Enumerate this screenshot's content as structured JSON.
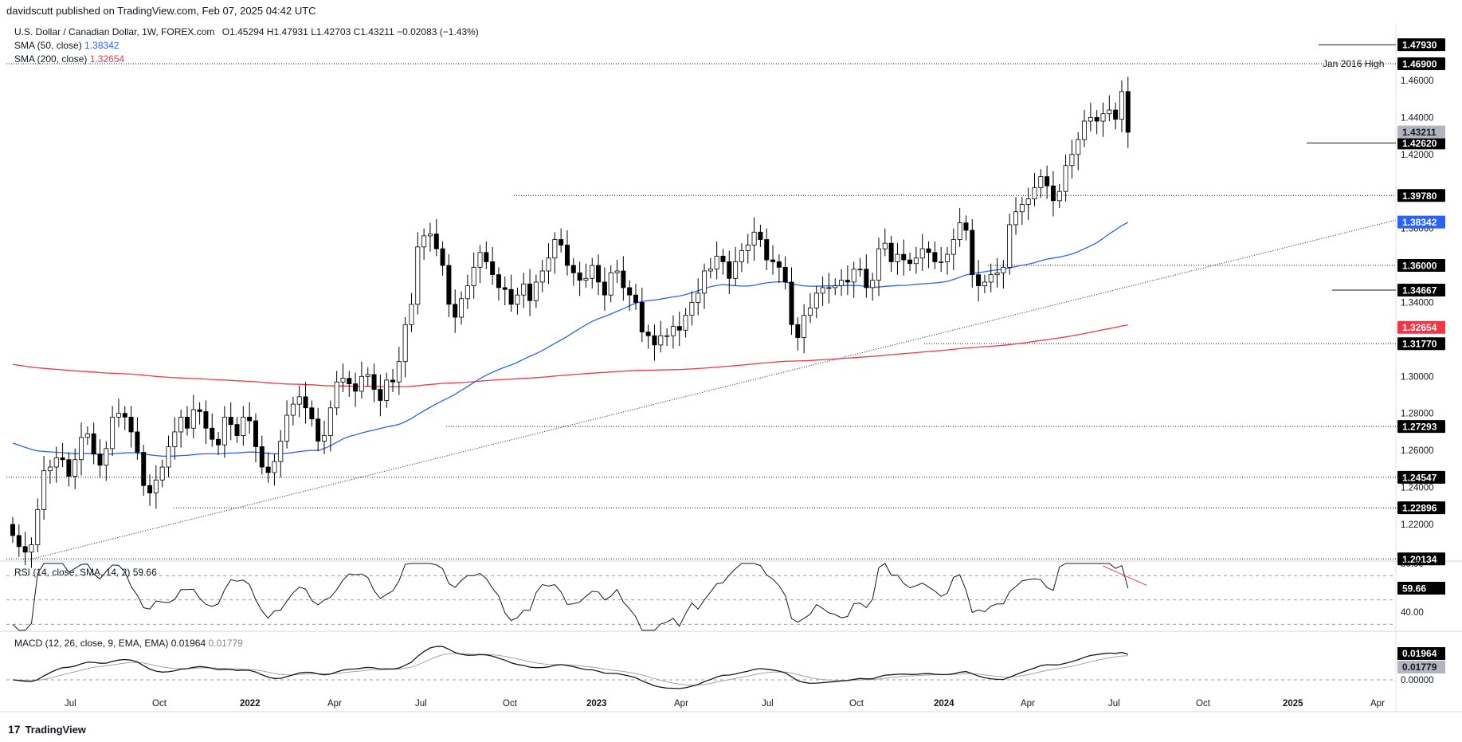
{
  "header": {
    "published": "davidscutt published on TradingView.com, Feb 07, 2025 04:42 UTC"
  },
  "symbol": {
    "name": "U.S. Dollar / Canadian Dollar, 1W, FOREX.com",
    "ohlc": "O1.45294  H1.47931  L1.42703  C1.43211  −0.02083 (−1.43%)"
  },
  "indicators": {
    "sma50_label": "SMA (50, close)",
    "sma50_value": "1.38342",
    "sma200_label": "SMA (200, close)",
    "sma200_value": "1.32654",
    "rsi_label": "RSI (14, close, SMA, 14, 2)",
    "rsi_value": "59.66",
    "macd_label": "MACD (12, 26, close, 9, EMA, EMA)",
    "macd_value": "0.01964",
    "signal_value": "0.01779"
  },
  "footer": {
    "brand": "TradingView"
  },
  "colors": {
    "up": "#ffffff",
    "down": "#000000",
    "sma50": "#2962ff",
    "sma200": "#f23645",
    "badge_dark": "#000000",
    "badge_price": "#b2b5be"
  },
  "chart_data": {
    "type": "candlestick",
    "timeframe": "1W",
    "ylim": [
      1.2,
      1.48
    ],
    "y_ticks": [
      "1.46000",
      "1.44000",
      "1.42000",
      "1.38000",
      "1.34000",
      "1.30000",
      "1.28000",
      "1.26000",
      "1.24000",
      "1.22000"
    ],
    "x_ticks": [
      "Jul",
      "Oct",
      "2022",
      "Apr",
      "Jul",
      "Oct",
      "2023",
      "Apr",
      "Jul",
      "Oct",
      "2024",
      "Apr",
      "Jul",
      "Oct",
      "2025",
      "Apr"
    ],
    "horizontal_levels": [
      "1.47930",
      "1.46900",
      "1.42620",
      "1.39780",
      "1.36000",
      "1.34667",
      "1.31770",
      "1.27293",
      "1.24547",
      "1.22896",
      "1.20134"
    ],
    "annotation": "Jan 2016 High",
    "last_close": "1.43211",
    "sma50_last": "1.38342",
    "sma200_last": "1.32654",
    "closes": [
      1.214,
      1.208,
      1.205,
      1.209,
      1.228,
      1.249,
      1.251,
      1.256,
      1.255,
      1.246,
      1.255,
      1.267,
      1.269,
      1.258,
      1.252,
      1.261,
      1.278,
      1.28,
      1.278,
      1.27,
      1.259,
      1.241,
      1.237,
      1.244,
      1.251,
      1.262,
      1.27,
      1.278,
      1.272,
      1.282,
      1.281,
      1.272,
      1.266,
      1.263,
      1.278,
      1.274,
      1.268,
      1.278,
      1.276,
      1.262,
      1.251,
      1.248,
      1.254,
      1.265,
      1.279,
      1.285,
      1.289,
      1.283,
      1.277,
      1.265,
      1.268,
      1.283,
      1.297,
      1.299,
      1.296,
      1.292,
      1.3,
      1.301,
      1.293,
      1.287,
      1.298,
      1.297,
      1.308,
      1.328,
      1.339,
      1.37,
      1.376,
      1.377,
      1.369,
      1.36,
      1.339,
      1.332,
      1.342,
      1.349,
      1.359,
      1.367,
      1.362,
      1.355,
      1.348,
      1.347,
      1.339,
      1.344,
      1.35,
      1.341,
      1.351,
      1.357,
      1.364,
      1.374,
      1.371,
      1.36,
      1.356,
      1.352,
      1.353,
      1.36,
      1.351,
      1.344,
      1.356,
      1.357,
      1.348,
      1.344,
      1.34,
      1.324,
      1.322,
      1.317,
      1.322,
      1.322,
      1.327,
      1.325,
      1.333,
      1.34,
      1.345,
      1.357,
      1.358,
      1.365,
      1.362,
      1.353,
      1.362,
      1.368,
      1.371,
      1.378,
      1.374,
      1.363,
      1.362,
      1.359,
      1.351,
      1.328,
      1.321,
      1.333,
      1.337,
      1.345,
      1.348,
      1.348,
      1.349,
      1.352,
      1.351,
      1.358,
      1.358,
      1.348,
      1.352,
      1.369,
      1.372,
      1.362,
      1.366,
      1.363,
      1.361,
      1.364,
      1.369,
      1.367,
      1.362,
      1.362,
      1.366,
      1.374,
      1.383,
      1.379,
      1.355,
      1.349,
      1.351,
      1.355,
      1.356,
      1.359,
      1.382,
      1.389,
      1.393,
      1.396,
      1.402,
      1.408,
      1.403,
      1.395,
      1.4,
      1.414,
      1.42,
      1.428,
      1.438,
      1.44,
      1.438,
      1.442,
      1.444,
      1.439,
      1.454,
      1.432
    ]
  }
}
